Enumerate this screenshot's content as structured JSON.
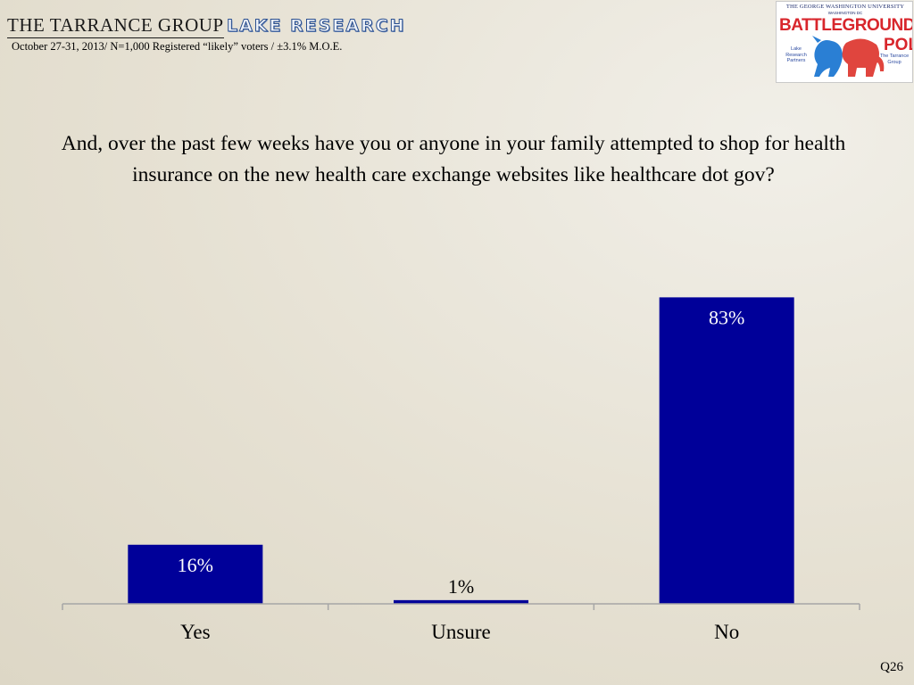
{
  "header": {
    "tarrance_logo_text": "THE TARRANCE GROUP",
    "lake_logo_text": "LAKE RESEARCH",
    "subtitle": "October 27-31, 2013/ N=1,000 Registered “likely” voters / ±3.1% M.O.E."
  },
  "battleground_logo": {
    "university": "THE GEORGE WASHINGTON UNIVERSITY",
    "location": "WASHINGTON DC",
    "word1": "BATTLEGROUND",
    "word2": "POLL",
    "left_caption": "Lake Research Partners",
    "right_caption": "The Tarrance Group"
  },
  "question": "And, over the past few weeks have you or anyone in your family attempted to shop for health insurance on the new health care exchange websites like healthcare dot gov?",
  "question_number": "Q26",
  "colors": {
    "bar": "#000099",
    "axis": "#a6a6a6",
    "label_inside": "#ffffff",
    "label_outside": "#000000"
  },
  "chart_data": {
    "type": "bar",
    "title": "",
    "xlabel": "",
    "ylabel": "",
    "categories": [
      "Yes",
      "Unsure",
      "No"
    ],
    "values": [
      16,
      1,
      83
    ],
    "value_labels": [
      "16%",
      "1%",
      "83%"
    ],
    "ylim": [
      0,
      100
    ],
    "grid": false,
    "legend": "none"
  }
}
